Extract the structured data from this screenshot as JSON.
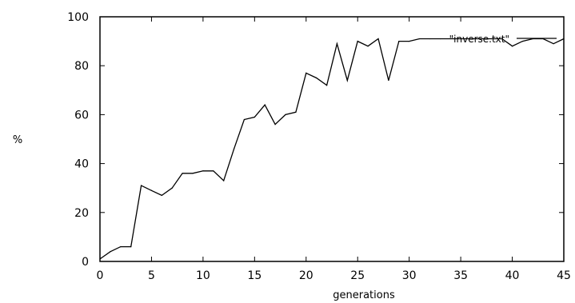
{
  "chart_data": {
    "type": "line",
    "title": "",
    "xlabel": "generations",
    "ylabel": "%",
    "xlim": [
      0,
      45
    ],
    "ylim": [
      0,
      100
    ],
    "xticks": [
      0,
      5,
      10,
      15,
      20,
      25,
      30,
      35,
      40,
      45
    ],
    "yticks": [
      0,
      20,
      40,
      60,
      80,
      100
    ],
    "grid": false,
    "legend_position": "top-right",
    "series": [
      {
        "name": "\"inverse.txt\"",
        "color": "#000000",
        "x": [
          0,
          1,
          2,
          3,
          4,
          5,
          6,
          7,
          8,
          9,
          10,
          11,
          12,
          13,
          14,
          15,
          16,
          17,
          18,
          19,
          20,
          21,
          22,
          23,
          24,
          25,
          26,
          27,
          28,
          29,
          30,
          31,
          32,
          33,
          34,
          35,
          36,
          37,
          38,
          39,
          40,
          41,
          42,
          43,
          44,
          45
        ],
        "values": [
          1,
          4,
          6,
          6,
          31,
          29,
          27,
          30,
          36,
          36,
          37,
          37,
          33,
          46,
          58,
          59,
          64,
          56,
          60,
          61,
          77,
          75,
          72,
          89,
          74,
          90,
          88,
          91,
          74,
          90,
          90,
          91,
          91,
          91,
          91,
          91,
          91,
          91,
          91,
          91,
          88,
          90,
          91,
          91,
          89,
          91
        ]
      }
    ]
  }
}
